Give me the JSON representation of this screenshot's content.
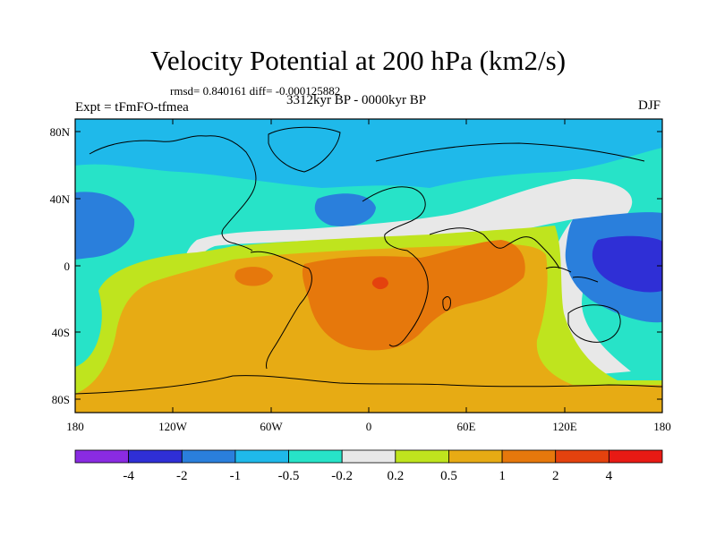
{
  "header": {
    "title": "Velocity Potential at 200 hPa (km2/s)",
    "stats": "rmsd= 0.840161 diff= -0.000125882",
    "experiment": "Expt = tFmFO-tfmea",
    "period": "3312kyr BP - 0000kyr BP",
    "season": "DJF"
  },
  "axes": {
    "y_ticks": [
      "80N",
      "40N",
      "0",
      "40S",
      "80S"
    ],
    "x_ticks": [
      "180",
      "120W",
      "60W",
      "0",
      "60E",
      "120E",
      "180"
    ]
  },
  "colorbar": {
    "colors": [
      "#8a2be2",
      "#2f2fd6",
      "#2a7fdc",
      "#1fb9ea",
      "#27e3c8",
      "#e8e8e8",
      "#bfe41e",
      "#e7ab14",
      "#e6780c",
      "#e4420e",
      "#e81a14"
    ],
    "labels": [
      "-4",
      "-2",
      "-1",
      "-0.5",
      "-0.2",
      "0.2",
      "0.5",
      "1",
      "2",
      "4"
    ]
  },
  "map": {
    "field_colors": {
      "strong_negative": "#2f2fd6",
      "negative": "#2a7fdc",
      "weak_negative": "#1fb9ea",
      "slight_negative": "#27e3c8",
      "neutral": "#e8e8e8",
      "slight_positive": "#bfe41e",
      "positive": "#e7ab14",
      "strong_positive": "#e6780c",
      "max_positive": "#e4420e"
    }
  }
}
